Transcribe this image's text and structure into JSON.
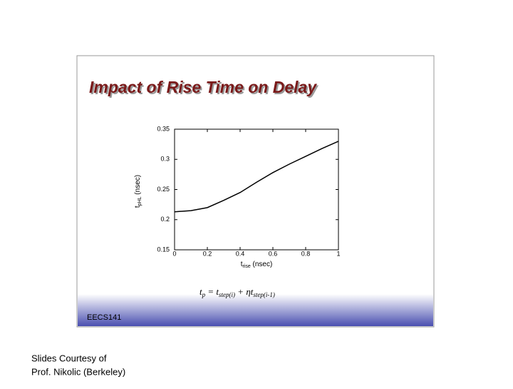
{
  "slide_title": "Impact of Rise Time on Delay",
  "footer": "EECS141",
  "formula": [
    "t",
    "p",
    " = ",
    "t",
    "step(i)",
    " + ",
    "ηt",
    "step(i-1)"
  ],
  "caption": [
    "Slides Courtesy of",
    "Prof. Nikolic (Berkeley)"
  ],
  "chart_data": {
    "type": "line",
    "x_label": [
      "t",
      "rise",
      " (nsec)"
    ],
    "y_label": [
      "t",
      "pHL",
      " (nsec)"
    ],
    "x": [
      0,
      0.1,
      0.2,
      0.3,
      0.4,
      0.5,
      0.6,
      0.7,
      0.8,
      0.9,
      1
    ],
    "values": [
      0.213,
      0.215,
      0.22,
      0.232,
      0.245,
      0.262,
      0.278,
      0.292,
      0.305,
      0.318,
      0.33
    ],
    "color": "#000000",
    "xlim": [
      0,
      1
    ],
    "xticks": [
      0,
      0.2,
      0.4,
      0.6,
      0.8,
      1
    ],
    "ylim": [
      0.15,
      0.35
    ],
    "yticks": [
      0.15,
      0.2,
      0.25,
      0.3,
      0.35
    ]
  }
}
